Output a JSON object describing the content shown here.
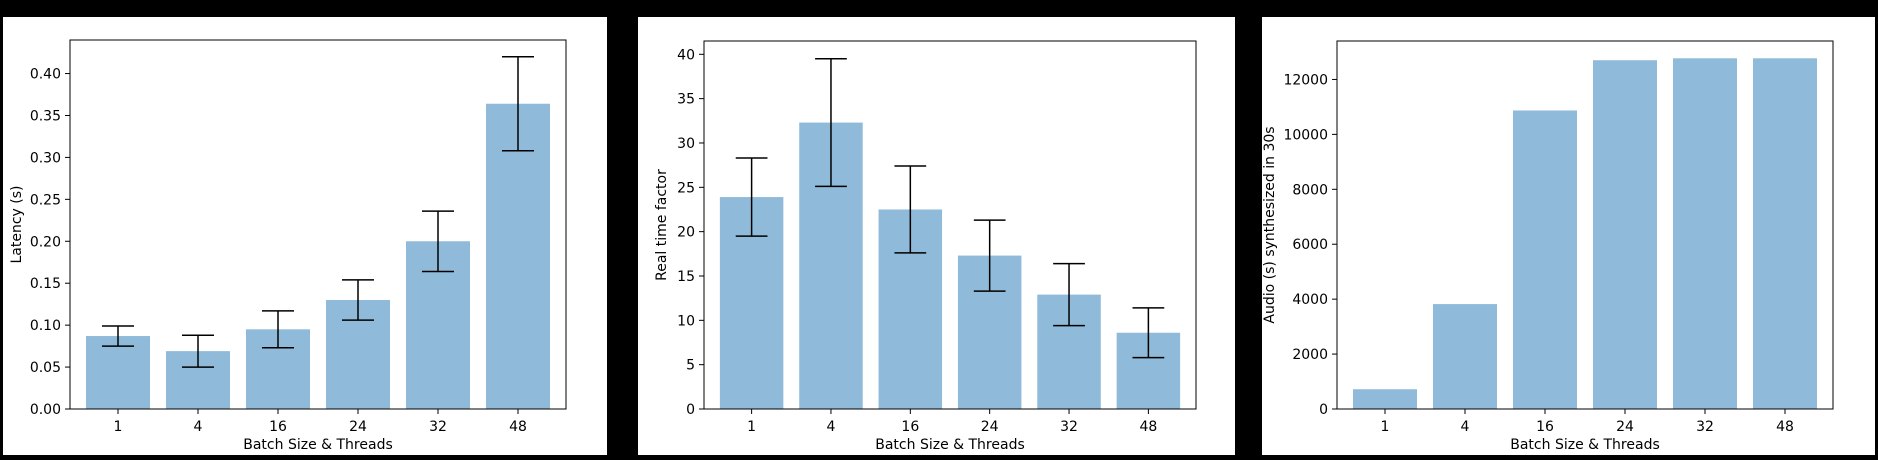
{
  "chart_data": [
    {
      "type": "bar",
      "xlabel": "Batch Size & Threads",
      "ylabel": "Latency (s)",
      "categories": [
        "1",
        "4",
        "16",
        "24",
        "32",
        "48"
      ],
      "values": [
        0.087,
        0.069,
        0.095,
        0.13,
        0.2,
        0.364
      ],
      "errors": [
        0.012,
        0.019,
        0.022,
        0.024,
        0.036,
        0.056
      ],
      "ylim": [
        0,
        0.44
      ],
      "yticks": [
        0.0,
        0.05,
        0.1,
        0.15,
        0.2,
        0.25,
        0.3,
        0.35,
        0.4
      ],
      "ytick_labels": [
        "0.00",
        "0.05",
        "0.10",
        "0.15",
        "0.20",
        "0.25",
        "0.30",
        "0.35",
        "0.40"
      ],
      "bar_color": "#8fbad9",
      "grid": false
    },
    {
      "type": "bar",
      "xlabel": "Batch Size & Threads",
      "ylabel": "Real time factor",
      "categories": [
        "1",
        "4",
        "16",
        "24",
        "32",
        "48"
      ],
      "values": [
        23.9,
        32.3,
        22.5,
        17.3,
        12.9,
        8.6
      ],
      "errors": [
        4.4,
        7.2,
        4.9,
        4.0,
        3.5,
        2.8
      ],
      "ylim": [
        0,
        41.5
      ],
      "yticks": [
        0,
        5,
        10,
        15,
        20,
        25,
        30,
        35,
        40
      ],
      "ytick_labels": [
        "0",
        "5",
        "10",
        "15",
        "20",
        "25",
        "30",
        "35",
        "40"
      ],
      "bar_color": "#8fbad9",
      "grid": false
    },
    {
      "type": "bar",
      "xlabel": "Batch Size & Threads",
      "ylabel": "Audio (s) synthesized in 30s",
      "categories": [
        "1",
        "4",
        "16",
        "24",
        "32",
        "48"
      ],
      "values": [
        720,
        3820,
        10870,
        12700,
        12770,
        12770
      ],
      "errors": null,
      "ylim": [
        0,
        13400
      ],
      "yticks": [
        0,
        2000,
        4000,
        6000,
        8000,
        10000,
        12000
      ],
      "ytick_labels": [
        "0",
        "2000",
        "4000",
        "6000",
        "8000",
        "10000",
        "12000"
      ],
      "bar_color": "#8fbad9",
      "grid": false
    }
  ]
}
